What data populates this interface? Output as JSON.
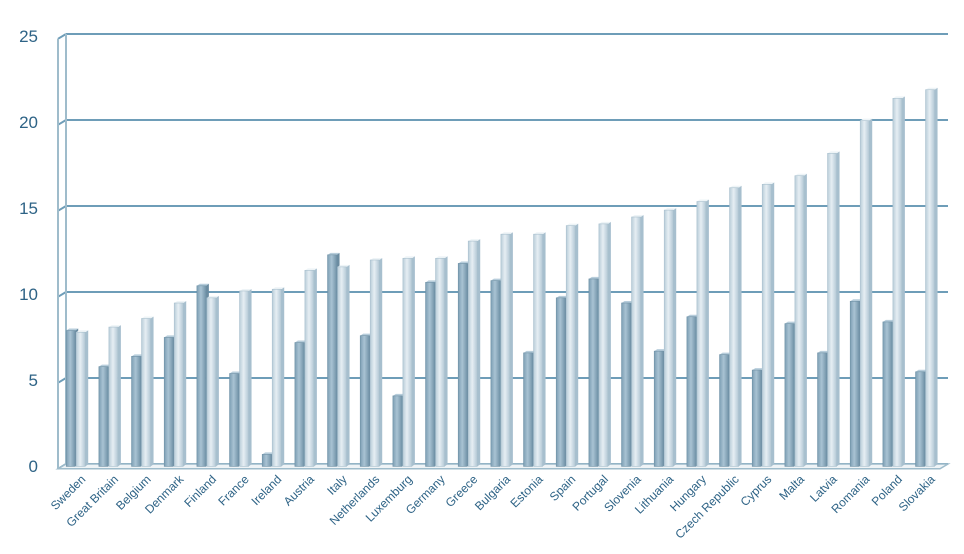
{
  "chart_data": {
    "type": "bar",
    "title": "",
    "xlabel": "",
    "ylabel": "",
    "ylim": [
      0,
      25
    ],
    "yticks": [
      0,
      5,
      10,
      15,
      20,
      25
    ],
    "grid": true,
    "legend": "none",
    "colors": {
      "series_1": "#8fb0c4",
      "series_2": "#cfdde6",
      "grid": "#6e9db8",
      "tick_text": "#2e6386",
      "axis": "#9fbccb"
    },
    "categories": [
      "Sweden",
      "Great Britain",
      "Belgium",
      "Denmark",
      "Finland",
      "France",
      "Ireland",
      "Austria",
      "Italy",
      "Netherlands",
      "Luxemburg",
      "Germany",
      "Greece",
      "Bulgaria",
      "Estonia",
      "Spain",
      "Portugal",
      "Slovenia",
      "Lithuania",
      "Hungary",
      "Czech Republic",
      "Cyprus",
      "Malta",
      "Latvia",
      "Romania",
      "Poland",
      "Slovakia"
    ],
    "series": [
      {
        "values": [
          7.9,
          5.8,
          6.4,
          7.5,
          10.5,
          5.4,
          0.7,
          7.2,
          12.3,
          7.6,
          4.1,
          10.7,
          11.8,
          10.8,
          6.6,
          9.8,
          10.9,
          9.5,
          6.7,
          8.7,
          6.5,
          5.6,
          8.3,
          6.6,
          9.6,
          8.4,
          5.5
        ]
      },
      {
        "values": [
          7.8,
          8.1,
          8.6,
          9.5,
          9.8,
          10.2,
          10.3,
          11.4,
          11.6,
          12.0,
          12.1,
          12.1,
          13.1,
          13.5,
          13.5,
          14.0,
          14.1,
          14.5,
          14.9,
          15.4,
          16.2,
          16.4,
          16.9,
          18.2,
          20.1,
          21.4,
          21.9
        ]
      }
    ]
  }
}
